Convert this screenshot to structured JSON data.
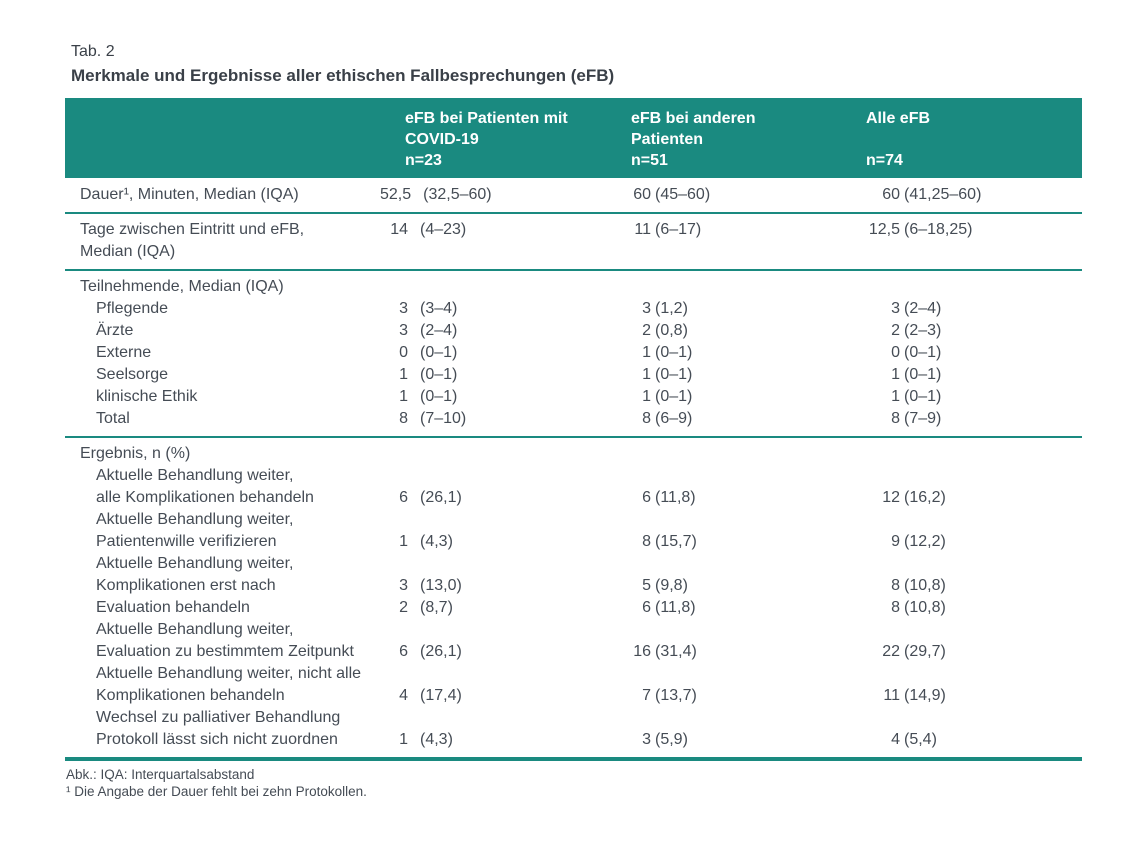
{
  "colors": {
    "teal": "#1A8A80",
    "header_text": "#FFFFFF",
    "body_text": "#454C55"
  },
  "table": {
    "tag": "Tab. 2",
    "title": "Merkmale und Ergebnisse aller ethischen Fallbesprechungen (eFB)",
    "columns": [
      {
        "name": "eFB bei Patienten mit COVID-19",
        "n": "n=23"
      },
      {
        "name": "eFB bei anderen Patienten",
        "n": "n=51"
      },
      {
        "name": "Alle eFB",
        "n": "n=74"
      }
    ],
    "sections": [
      {
        "lines": [
          {
            "label": "Dauer¹, Minuten, Median (IQA)",
            "indent": false,
            "values": [
              [
                "52,5",
                "(32,5–60)"
              ],
              [
                "60",
                "(45–60)"
              ],
              [
                "60",
                "(41,25–60)"
              ]
            ]
          }
        ]
      },
      {
        "lines": [
          {
            "label": "Tage zwischen Eintritt und eFB,",
            "indent": false,
            "values": [
              [
                "14",
                "(4–23)"
              ],
              [
                "11",
                "(6–17)"
              ],
              [
                "12,5",
                "(6–18,25)"
              ]
            ]
          },
          {
            "label": "Median (IQA)",
            "indent": false,
            "values": null
          }
        ]
      },
      {
        "lines": [
          {
            "label": "Teilnehmende, Median (IQA)",
            "indent": false,
            "values": null
          },
          {
            "label": "Pflegende",
            "indent": true,
            "values": [
              [
                "3",
                "(3–4)"
              ],
              [
                "3",
                "(1,2)"
              ],
              [
                "3",
                "(2–4)"
              ]
            ]
          },
          {
            "label": "Ärzte",
            "indent": true,
            "values": [
              [
                "3",
                "(2–4)"
              ],
              [
                "2",
                "(0,8)"
              ],
              [
                "2",
                "(2–3)"
              ]
            ]
          },
          {
            "label": "Externe",
            "indent": true,
            "values": [
              [
                "0",
                "(0–1)"
              ],
              [
                "1",
                "(0–1)"
              ],
              [
                "0",
                "(0–1)"
              ]
            ]
          },
          {
            "label": "Seelsorge",
            "indent": true,
            "values": [
              [
                "1",
                "(0–1)"
              ],
              [
                "1",
                "(0–1)"
              ],
              [
                "1",
                "(0–1)"
              ]
            ]
          },
          {
            "label": "klinische Ethik",
            "indent": true,
            "values": [
              [
                "1",
                "(0–1)"
              ],
              [
                "1",
                "(0–1)"
              ],
              [
                "1",
                "(0–1)"
              ]
            ]
          },
          {
            "label": "Total",
            "indent": true,
            "values": [
              [
                "8",
                "(7–10)"
              ],
              [
                "8",
                "(6–9)"
              ],
              [
                "8",
                "(7–9)"
              ]
            ]
          }
        ]
      },
      {
        "lines": [
          {
            "label": "Ergebnis, n (%)",
            "indent": false,
            "values": null
          },
          {
            "label": "Aktuelle Behandlung weiter,",
            "indent": true,
            "values": null
          },
          {
            "label": "alle Komplikationen behandeln",
            "indent": true,
            "values": [
              [
                "6",
                "(26,1)"
              ],
              [
                "6",
                "(11,8)"
              ],
              [
                "12",
                "(16,2)"
              ]
            ]
          },
          {
            "label": "Aktuelle Behandlung weiter,",
            "indent": true,
            "values": null
          },
          {
            "label": "Patientenwille verifizieren",
            "indent": true,
            "values": [
              [
                "1",
                "(4,3)"
              ],
              [
                "8",
                "(15,7)"
              ],
              [
                "9",
                "(12,2)"
              ]
            ]
          },
          {
            "label": "Aktuelle Behandlung weiter,",
            "indent": true,
            "values": null
          },
          {
            "label": "Komplikationen erst nach",
            "indent": true,
            "values": [
              [
                "3",
                "(13,0)"
              ],
              [
                "5",
                "(9,8)"
              ],
              [
                "8",
                "(10,8)"
              ]
            ]
          },
          {
            "label": "Evaluation behandeln",
            "indent": true,
            "values": [
              [
                "2",
                "(8,7)"
              ],
              [
                "6",
                "(11,8)"
              ],
              [
                "8",
                "(10,8)"
              ]
            ]
          },
          {
            "label": "Aktuelle Behandlung weiter,",
            "indent": true,
            "values": null
          },
          {
            "label": "Evaluation zu bestimmtem Zeitpunkt",
            "indent": true,
            "values": [
              [
                "6",
                "(26,1)"
              ],
              [
                "16",
                "(31,4)"
              ],
              [
                "22",
                "(29,7)"
              ]
            ]
          },
          {
            "label": "Aktuelle Behandlung weiter, nicht alle",
            "indent": true,
            "values": null
          },
          {
            "label": "Komplikationen behandeln",
            "indent": true,
            "values": [
              [
                "4",
                "(17,4)"
              ],
              [
                "7",
                "(13,7)"
              ],
              [
                "11",
                "(14,9)"
              ]
            ]
          },
          {
            "label": "Wechsel zu palliativer Behandlung",
            "indent": true,
            "values": null
          },
          {
            "label": "Protokoll lässt sich nicht zuordnen",
            "indent": true,
            "values": [
              [
                "1",
                "(4,3)"
              ],
              [
                "3",
                "(5,9)"
              ],
              [
                "4",
                "(5,4)"
              ]
            ]
          }
        ]
      }
    ],
    "footnotes": [
      "Abk.: IQA: Interquartalsabstand",
      "¹ Die Angabe der Dauer fehlt bei zehn Protokollen."
    ]
  }
}
